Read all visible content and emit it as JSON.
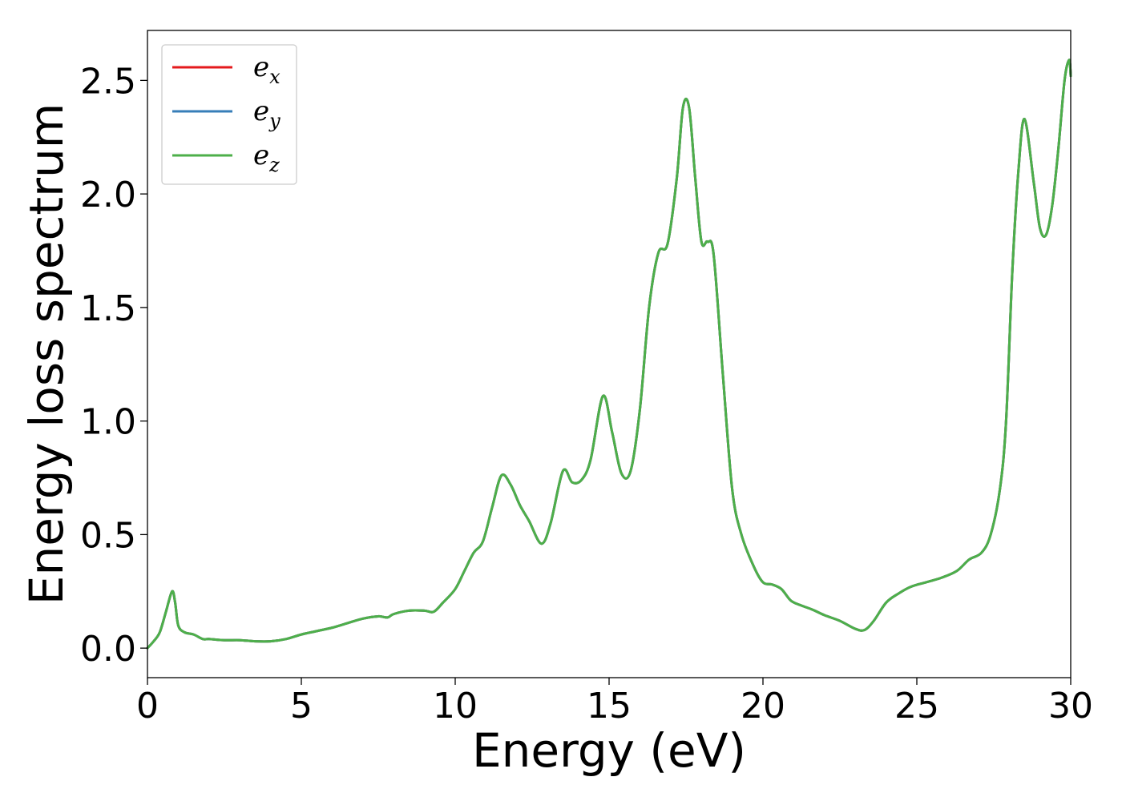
{
  "chart_data": {
    "type": "line",
    "title": "",
    "xlabel": "Energy (eV)",
    "ylabel": "Energy loss spectrum",
    "xlim": [
      0,
      30
    ],
    "ylim": [
      -0.13,
      2.72
    ],
    "xticks": [
      0,
      5,
      10,
      15,
      20,
      25,
      30
    ],
    "xtick_labels": [
      "0",
      "5",
      "10",
      "15",
      "20",
      "25",
      "30"
    ],
    "yticks": [
      0.0,
      0.5,
      1.0,
      1.5,
      2.0,
      2.5
    ],
    "ytick_labels": [
      "0.0",
      "0.5",
      "1.0",
      "1.5",
      "2.0",
      "2.5"
    ],
    "grid": false,
    "legend_position": "top-left",
    "legend": [
      {
        "base": "e",
        "sub": "x",
        "color": "#e41a1c"
      },
      {
        "base": "e",
        "sub": "y",
        "color": "#377eb8"
      },
      {
        "base": "e",
        "sub": "z",
        "color": "#4daf4a"
      }
    ],
    "x": [
      0,
      0.2,
      0.4,
      0.6,
      0.8,
      0.9,
      1.0,
      1.2,
      1.5,
      1.8,
      2.0,
      2.5,
      3.0,
      3.5,
      4.0,
      4.5,
      5.0,
      5.5,
      6.0,
      6.5,
      7.0,
      7.5,
      7.8,
      8.0,
      8.5,
      9.0,
      9.3,
      9.6,
      10.0,
      10.3,
      10.6,
      10.9,
      11.2,
      11.5,
      11.8,
      12.1,
      12.4,
      12.8,
      13.1,
      13.5,
      13.8,
      14.1,
      14.4,
      14.8,
      15.1,
      15.4,
      15.7,
      16.0,
      16.3,
      16.6,
      16.9,
      17.2,
      17.4,
      17.6,
      17.8,
      18.0,
      18.2,
      18.4,
      18.7,
      19.0,
      19.3,
      19.7,
      20.0,
      20.3,
      20.6,
      20.9,
      21.2,
      21.6,
      22.0,
      22.5,
      23.0,
      23.3,
      23.6,
      24.0,
      24.4,
      24.8,
      25.3,
      25.8,
      26.3,
      26.7,
      27.1,
      27.4,
      27.7,
      27.9,
      28.1,
      28.3,
      28.5,
      28.8,
      29.0,
      29.2,
      29.4,
      29.6,
      29.8,
      29.95,
      30.0
    ],
    "series": [
      {
        "name": "e_x",
        "color": "#e41a1c",
        "values": [
          0.0,
          0.03,
          0.07,
          0.16,
          0.25,
          0.2,
          0.1,
          0.07,
          0.06,
          0.04,
          0.04,
          0.035,
          0.035,
          0.03,
          0.03,
          0.04,
          0.06,
          0.075,
          0.09,
          0.11,
          0.13,
          0.14,
          0.135,
          0.15,
          0.165,
          0.165,
          0.16,
          0.2,
          0.26,
          0.34,
          0.42,
          0.47,
          0.62,
          0.76,
          0.72,
          0.63,
          0.56,
          0.46,
          0.55,
          0.78,
          0.73,
          0.74,
          0.83,
          1.11,
          0.95,
          0.77,
          0.78,
          1.05,
          1.5,
          1.74,
          1.78,
          2.07,
          2.38,
          2.38,
          2.07,
          1.79,
          1.79,
          1.73,
          1.2,
          0.7,
          0.5,
          0.36,
          0.29,
          0.28,
          0.26,
          0.21,
          0.19,
          0.17,
          0.145,
          0.12,
          0.085,
          0.08,
          0.12,
          0.2,
          0.24,
          0.27,
          0.29,
          0.31,
          0.34,
          0.39,
          0.42,
          0.5,
          0.7,
          1.0,
          1.65,
          2.1,
          2.33,
          2.05,
          1.85,
          1.82,
          1.95,
          2.2,
          2.5,
          2.59,
          2.52
        ]
      },
      {
        "name": "e_y",
        "color": "#377eb8",
        "values": [
          0.0,
          0.03,
          0.07,
          0.16,
          0.25,
          0.2,
          0.1,
          0.07,
          0.06,
          0.04,
          0.04,
          0.035,
          0.035,
          0.03,
          0.03,
          0.04,
          0.06,
          0.075,
          0.09,
          0.11,
          0.13,
          0.14,
          0.135,
          0.15,
          0.165,
          0.165,
          0.16,
          0.2,
          0.26,
          0.34,
          0.42,
          0.47,
          0.62,
          0.76,
          0.72,
          0.63,
          0.56,
          0.46,
          0.55,
          0.78,
          0.73,
          0.74,
          0.83,
          1.11,
          0.95,
          0.77,
          0.78,
          1.05,
          1.5,
          1.74,
          1.78,
          2.07,
          2.38,
          2.38,
          2.07,
          1.79,
          1.79,
          1.73,
          1.2,
          0.7,
          0.5,
          0.36,
          0.29,
          0.28,
          0.26,
          0.21,
          0.19,
          0.17,
          0.145,
          0.12,
          0.085,
          0.08,
          0.12,
          0.2,
          0.24,
          0.27,
          0.29,
          0.31,
          0.34,
          0.39,
          0.42,
          0.5,
          0.7,
          1.0,
          1.65,
          2.1,
          2.33,
          2.05,
          1.85,
          1.82,
          1.95,
          2.2,
          2.5,
          2.59,
          2.52
        ]
      },
      {
        "name": "e_z",
        "color": "#4daf4a",
        "values": [
          0.0,
          0.03,
          0.07,
          0.16,
          0.25,
          0.2,
          0.1,
          0.07,
          0.06,
          0.04,
          0.04,
          0.035,
          0.035,
          0.03,
          0.03,
          0.04,
          0.06,
          0.075,
          0.09,
          0.11,
          0.13,
          0.14,
          0.135,
          0.15,
          0.165,
          0.165,
          0.16,
          0.2,
          0.26,
          0.34,
          0.42,
          0.47,
          0.62,
          0.76,
          0.72,
          0.63,
          0.56,
          0.46,
          0.55,
          0.78,
          0.73,
          0.74,
          0.83,
          1.11,
          0.95,
          0.77,
          0.78,
          1.05,
          1.5,
          1.74,
          1.78,
          2.07,
          2.38,
          2.38,
          2.07,
          1.79,
          1.79,
          1.73,
          1.2,
          0.7,
          0.5,
          0.36,
          0.29,
          0.28,
          0.26,
          0.21,
          0.19,
          0.17,
          0.145,
          0.12,
          0.085,
          0.08,
          0.12,
          0.2,
          0.24,
          0.27,
          0.29,
          0.31,
          0.34,
          0.39,
          0.42,
          0.5,
          0.7,
          1.0,
          1.65,
          2.1,
          2.33,
          2.05,
          1.85,
          1.82,
          1.95,
          2.2,
          2.5,
          2.59,
          2.52
        ]
      }
    ]
  }
}
